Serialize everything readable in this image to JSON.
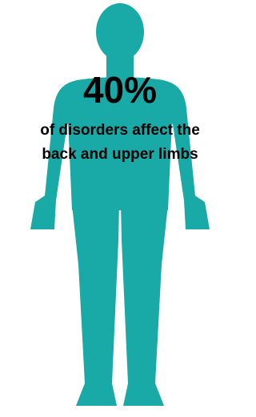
{
  "stat": {
    "value": "40%",
    "caption": [
      "of disorders affect the",
      "back and upper limbs"
    ]
  }
}
